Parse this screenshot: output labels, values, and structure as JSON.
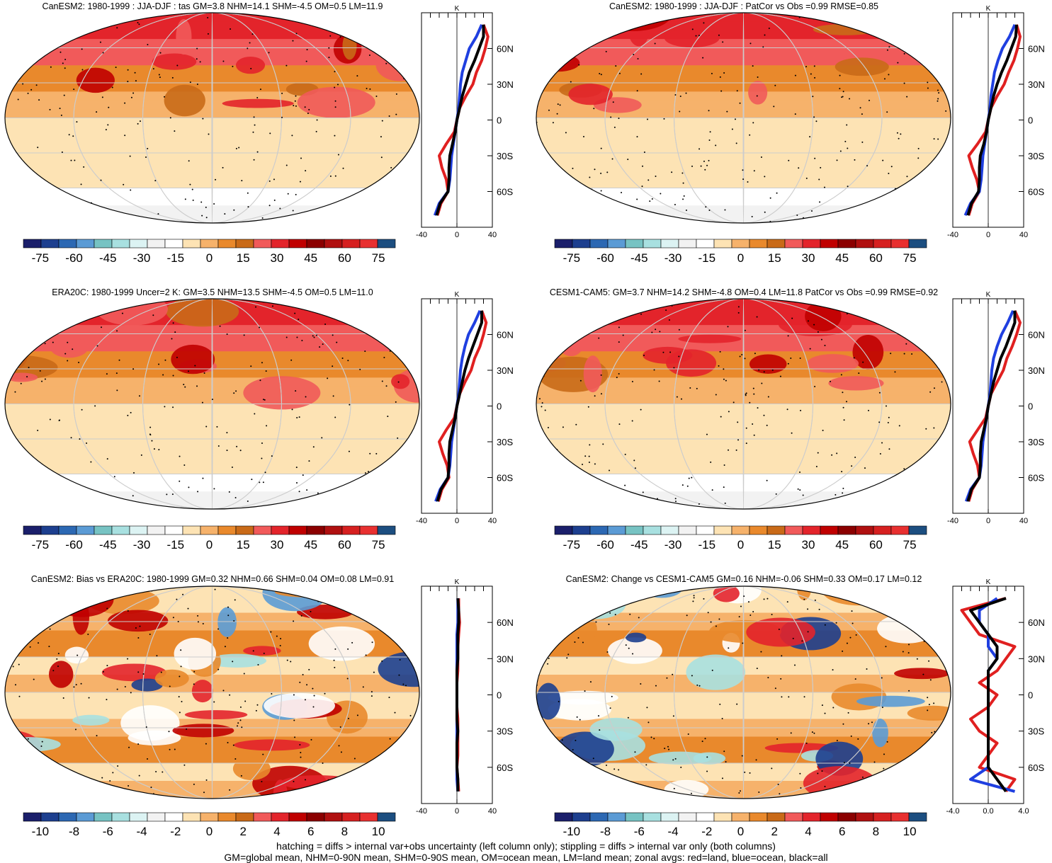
{
  "colors": {
    "ocean_palette": [
      "#1b1f6b",
      "#1d3f8f",
      "#2c68b3",
      "#5b9bd5",
      "#77c3c3",
      "#a8e0e0",
      "#dcf3f3",
      "#f2f2f2",
      "#ffffff",
      "#fde3b4",
      "#f6b26b",
      "#e9892c",
      "#c96a18",
      "#f15a5a",
      "#e3242b",
      "#c00000",
      "#8b0000",
      "#b01010",
      "#d62020",
      "#e83030",
      "#1c4e80"
    ],
    "land_line": "#e02020",
    "ocean_line": "#1f3fe0",
    "all_line": "#000000"
  },
  "chart_data": [
    {
      "type": "heatmap",
      "title": "CanESM2: 1980-1999 : JJA-DJF : tas GM=3.8 NHM=14.1 SHM=-4.5 OM=0.5 LM=11.9",
      "colorbar_ticks": [
        "-75",
        "-60",
        "-45",
        "-30",
        "-15",
        "0",
        "15",
        "30",
        "45",
        "60",
        "75"
      ],
      "profile": {
        "unit": "K",
        "xlim": [
          -40,
          40
        ],
        "x_ticks": [
          "-40",
          "0",
          "40"
        ],
        "y_ticks": [
          "60N",
          "30N",
          "0",
          "30S",
          "60S"
        ],
        "lat": [
          80,
          70,
          60,
          50,
          40,
          30,
          20,
          10,
          0,
          -10,
          -20,
          -30,
          -40,
          -50,
          -60,
          -70,
          -80
        ],
        "series": [
          {
            "name": "red",
            "values": [
              30,
              35,
              32,
              28,
              22,
              18,
              10,
              3,
              0,
              -3,
              -12,
              -20,
              -17,
              -12,
              -10,
              -18,
              -22
            ]
          },
          {
            "name": "blue",
            "values": [
              28,
              22,
              14,
              10,
              6,
              4,
              3,
              2,
              0,
              -2,
              -4,
              -6,
              -7,
              -8,
              -10,
              -20,
              -25
            ]
          },
          {
            "name": "black",
            "values": [
              30,
              30,
              25,
              20,
              14,
              10,
              6,
              3,
              0,
              -2,
              -5,
              -8,
              -9,
              -9,
              -10,
              -19,
              -23
            ]
          }
        ]
      }
    },
    {
      "type": "heatmap",
      "title": "CanESM2: 1980-1999 : JJA-DJF : PatCor vs Obs =0.99 RMSE=0.85",
      "colorbar_ticks": [
        "-75",
        "-60",
        "-45",
        "-30",
        "-15",
        "0",
        "15",
        "30",
        "45",
        "60",
        "75"
      ],
      "profile": {
        "unit": "K",
        "xlim": [
          -40,
          40
        ],
        "x_ticks": [
          "-40",
          "0",
          "40"
        ],
        "y_ticks": [
          "60N",
          "30N",
          "0",
          "30S",
          "60S"
        ],
        "lat": [
          80,
          70,
          60,
          50,
          40,
          30,
          20,
          10,
          0,
          -10,
          -20,
          -30,
          -40,
          -50,
          -60,
          -70,
          -80
        ],
        "series": [
          {
            "name": "red",
            "values": [
              32,
              36,
              33,
              29,
              23,
              18,
              10,
              3,
              0,
              -3,
              -12,
              -22,
              -18,
              -13,
              -10,
              -18,
              -22
            ]
          },
          {
            "name": "blue",
            "values": [
              30,
              24,
              16,
              11,
              7,
              5,
              3,
              2,
              0,
              -2,
              -4,
              -6,
              -7,
              -8,
              -10,
              -20,
              -26
            ]
          },
          {
            "name": "black",
            "values": [
              32,
              31,
              26,
              21,
              15,
              10,
              6,
              3,
              0,
              -2,
              -5,
              -9,
              -10,
              -10,
              -11,
              -19,
              -23
            ]
          }
        ]
      }
    },
    {
      "type": "heatmap",
      "title": "ERA20C: 1980-1999 Uncer=2 K: GM=3.5 NHM=13.5 SHM=-4.5 OM=0.5 LM=11.0",
      "colorbar_ticks": [
        "-75",
        "-60",
        "-45",
        "-30",
        "-15",
        "0",
        "15",
        "30",
        "45",
        "60",
        "75"
      ],
      "profile": {
        "unit": "K",
        "xlim": [
          -40,
          40
        ],
        "x_ticks": [
          "-40",
          "0",
          "40"
        ],
        "y_ticks": [
          "60N",
          "30N",
          "0",
          "30S",
          "60S"
        ],
        "lat": [
          80,
          70,
          60,
          50,
          40,
          30,
          20,
          10,
          0,
          -10,
          -20,
          -30,
          -40,
          -50,
          -60,
          -70,
          -80
        ],
        "series": [
          {
            "name": "red",
            "values": [
              28,
              33,
              30,
              26,
              20,
              16,
              9,
              3,
              0,
              -3,
              -12,
              -20,
              -16,
              -11,
              -9,
              -17,
              -21
            ]
          },
          {
            "name": "blue",
            "values": [
              26,
              20,
              13,
              9,
              6,
              4,
              3,
              2,
              0,
              -2,
              -4,
              -6,
              -7,
              -8,
              -10,
              -19,
              -24
            ]
          },
          {
            "name": "black",
            "values": [
              28,
              28,
              23,
              18,
              13,
              9,
              6,
              3,
              0,
              -2,
              -5,
              -8,
              -9,
              -9,
              -10,
              -18,
              -22
            ]
          }
        ]
      }
    },
    {
      "type": "heatmap",
      "title": "CESM1-CAM5: GM=3.7 NHM=14.2 SHM=-4.8 OM=0.4 LM=11.8 PatCor vs Obs =0.99 RMSE=0.92",
      "colorbar_ticks": [
        "-75",
        "-60",
        "-45",
        "-30",
        "-15",
        "0",
        "15",
        "30",
        "45",
        "60",
        "75"
      ],
      "profile": {
        "unit": "K",
        "xlim": [
          -40,
          40
        ],
        "x_ticks": [
          "-40",
          "0",
          "40"
        ],
        "y_ticks": [
          "60N",
          "30N",
          "0",
          "30S",
          "60S"
        ],
        "lat": [
          80,
          70,
          60,
          50,
          40,
          30,
          20,
          10,
          0,
          -10,
          -20,
          -30,
          -40,
          -50,
          -60,
          -70,
          -80
        ],
        "series": [
          {
            "name": "red",
            "values": [
              30,
              36,
              32,
              27,
              21,
              17,
              10,
              3,
              0,
              -3,
              -12,
              -21,
              -17,
              -12,
              -10,
              -18,
              -22
            ]
          },
          {
            "name": "blue",
            "values": [
              28,
              22,
              15,
              10,
              6,
              4,
              3,
              2,
              0,
              -2,
              -4,
              -6,
              -7,
              -8,
              -10,
              -20,
              -25
            ]
          },
          {
            "name": "black",
            "values": [
              30,
              30,
              25,
              20,
              14,
              10,
              6,
              3,
              0,
              -2,
              -5,
              -8,
              -9,
              -9,
              -10,
              -19,
              -23
            ]
          }
        ]
      }
    },
    {
      "type": "heatmap",
      "title": "CanESM2: Bias vs ERA20C: 1980-1999 GM=0.32 NHM=0.66 SHM=0.04 OM=0.08 LM=0.91",
      "colorbar_ticks": [
        "-10",
        "-8",
        "-6",
        "-4",
        "-2",
        "0",
        "2",
        "4",
        "6",
        "8",
        "10"
      ],
      "profile": {
        "unit": "K",
        "xlim": [
          -40,
          40
        ],
        "x_ticks": [
          "-40",
          "0",
          "40"
        ],
        "y_ticks": [
          "60N",
          "30N",
          "0",
          "30S",
          "60S"
        ],
        "lat": [
          80,
          70,
          60,
          50,
          40,
          30,
          20,
          10,
          0,
          -10,
          -20,
          -30,
          -40,
          -50,
          -60,
          -70,
          -80
        ],
        "series": [
          {
            "name": "red",
            "values": [
              2,
              2,
              3,
              2,
              1,
              1,
              1,
              0,
              0,
              0,
              1,
              1,
              1,
              1,
              0,
              1,
              2
            ]
          },
          {
            "name": "blue",
            "values": [
              1,
              1,
              1,
              0,
              0,
              0,
              0,
              0,
              0,
              0,
              0,
              0,
              0,
              0,
              0,
              0,
              1
            ]
          },
          {
            "name": "black",
            "values": [
              1,
              2,
              2,
              1,
              1,
              1,
              0,
              0,
              0,
              0,
              0,
              1,
              0,
              0,
              0,
              1,
              1
            ]
          }
        ]
      }
    },
    {
      "type": "heatmap",
      "title": "CanESM2: Change vs CESM1-CAM5 GM=0.16 NHM=-0.06 SHM=0.33 OM=0.17 LM=0.12",
      "colorbar_ticks": [
        "-10",
        "-8",
        "-6",
        "-4",
        "-2",
        "0",
        "2",
        "4",
        "6",
        "8",
        "10"
      ],
      "profile": {
        "unit": "K",
        "xlim": [
          -4,
          4
        ],
        "x_ticks": [
          "-4.0",
          "0.0",
          "4.0"
        ],
        "y_ticks": [
          "60N",
          "30N",
          "0",
          "30S",
          "60S"
        ],
        "lat": [
          80,
          70,
          60,
          50,
          40,
          30,
          20,
          10,
          0,
          -10,
          -20,
          -30,
          -40,
          -50,
          -60,
          -70,
          -80
        ],
        "series": [
          {
            "name": "red",
            "values": [
              2,
              -3,
              -2,
              -1,
              3,
              2,
              1,
              -1,
              1,
              0,
              -2,
              -1,
              1,
              0,
              -1,
              3,
              2
            ]
          },
          {
            "name": "blue",
            "values": [
              1,
              -1,
              -1,
              0,
              0,
              1,
              0,
              0,
              0,
              0,
              0,
              0,
              0,
              0,
              0,
              -2,
              3
            ]
          },
          {
            "name": "black",
            "values": [
              2,
              -2,
              -1,
              0,
              1,
              1,
              0,
              0,
              0,
              0,
              0,
              0,
              0,
              0,
              0,
              1,
              2
            ]
          }
        ]
      }
    }
  ],
  "footer": {
    "line1": "hatching = diffs > internal var+obs uncertainty (left column only); stippling = diffs > internal var only (both columns)",
    "line2": "GM=global mean, NHM=0-90N mean, SHM=0-90S mean, OM=ocean mean, LM=land mean; zonal avgs: red=land, blue=ocean, black=all"
  }
}
